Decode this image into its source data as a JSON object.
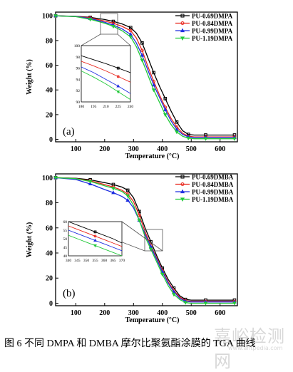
{
  "caption": "图 6  不同 DMPA 和 DMBA 摩尔比聚氨酯涂膜的 TGA 曲线",
  "watermark": {
    "text": "嘉峪检测网",
    "sub": "www.antpedia.com"
  },
  "chart_data": [
    {
      "type": "line",
      "panel_label": "(a)",
      "xlabel": "Temperature (°C)",
      "ylabel": "Weight (%)",
      "xlim": [
        30,
        660
      ],
      "ylim": [
        -2,
        103
      ],
      "xticks": [
        100,
        200,
        300,
        400,
        500,
        600
      ],
      "yticks": [
        0,
        20,
        40,
        60,
        80,
        100
      ],
      "legend_position": "top-right",
      "series": [
        {
          "name": "PU-0.69DMPA",
          "color": "#000000",
          "marker": "square",
          "x": [
            30,
            100,
            150,
            200,
            230,
            260,
            290,
            310,
            330,
            350,
            370,
            390,
            410,
            430,
            450,
            470,
            490,
            510,
            550,
            600,
            650
          ],
          "y": [
            100,
            99.6,
            98.8,
            97,
            95.5,
            93.5,
            90.5,
            86,
            78,
            66,
            54,
            43,
            33,
            23,
            14,
            7,
            4,
            3.5,
            3.5,
            3.5,
            3.5
          ]
        },
        {
          "name": "PU-0.84DMPA",
          "color": "#e8261c",
          "marker": "circle",
          "x": [
            30,
            100,
            150,
            200,
            230,
            260,
            290,
            310,
            330,
            350,
            370,
            390,
            410,
            430,
            450,
            470,
            490,
            510,
            550,
            600,
            650
          ],
          "y": [
            100,
            99.5,
            98.4,
            95.8,
            94,
            91.5,
            88,
            82,
            72,
            59,
            47,
            36,
            26,
            17,
            10,
            5,
            2.5,
            2,
            2,
            2,
            2
          ]
        },
        {
          "name": "PU-0.99DMPA",
          "color": "#1f2fe0",
          "marker": "triangle",
          "x": [
            30,
            100,
            150,
            200,
            230,
            260,
            290,
            310,
            330,
            350,
            370,
            390,
            410,
            430,
            450,
            470,
            490,
            510,
            550,
            600,
            650
          ],
          "y": [
            100,
            99.4,
            97.8,
            94.8,
            92.5,
            89.5,
            85,
            78,
            68,
            56,
            44,
            34,
            24,
            15,
            8,
            4,
            2,
            1.5,
            1.5,
            1.5,
            1.5
          ]
        },
        {
          "name": "PU-1.19DMPA",
          "color": "#22c93a",
          "marker": "triangle-down",
          "x": [
            30,
            100,
            150,
            200,
            230,
            260,
            290,
            310,
            330,
            350,
            370,
            390,
            410,
            430,
            450,
            470,
            490,
            510,
            550,
            600,
            650
          ],
          "y": [
            100,
            99.3,
            97.2,
            94,
            91.5,
            88,
            83,
            75,
            64,
            52,
            40,
            30,
            20,
            12,
            6,
            2.5,
            1,
            0.5,
            0.5,
            0.5,
            0.5
          ]
        }
      ],
      "inset": {
        "xlim": [
          180,
          240
        ],
        "ylim": [
          90,
          100
        ],
        "xticks": [
          180,
          195,
          210,
          225,
          240
        ],
        "yticks": [
          90,
          92,
          94,
          96,
          98,
          100
        ],
        "series": [
          {
            "name": "PU-0.69DMPA",
            "x": [
              180,
              195,
              210,
              225,
              240
            ],
            "y": [
              98.2,
              97.5,
              96.8,
              96.0,
              95.2
            ]
          },
          {
            "name": "PU-0.84DMPA",
            "x": [
              180,
              195,
              210,
              225,
              240
            ],
            "y": [
              97.2,
              96.4,
              95.5,
              94.5,
              93.5
            ]
          },
          {
            "name": "PU-0.99DMPA",
            "x": [
              180,
              195,
              210,
              225,
              240
            ],
            "y": [
              96.2,
              95.2,
              94.0,
              92.8,
              91.5
            ]
          },
          {
            "name": "PU-1.19DMPA",
            "x": [
              180,
              195,
              210,
              225,
              240
            ],
            "y": [
              95.5,
              94.4,
              93.2,
              91.8,
              90.4
            ]
          }
        ]
      }
    },
    {
      "type": "line",
      "panel_label": "(b)",
      "xlabel": "Temperature (°C)",
      "ylabel": "Weight (%)",
      "xlim": [
        30,
        660
      ],
      "ylim": [
        -2,
        103
      ],
      "xticks": [
        100,
        200,
        300,
        400,
        500,
        600
      ],
      "yticks": [
        0,
        20,
        40,
        60,
        80,
        100
      ],
      "legend_position": "top-right",
      "series": [
        {
          "name": "PU-0.69DMBA",
          "color": "#000000",
          "marker": "square",
          "x": [
            30,
            100,
            150,
            200,
            230,
            260,
            280,
            300,
            320,
            340,
            360,
            380,
            400,
            420,
            440,
            460,
            480,
            500,
            550,
            600,
            650
          ],
          "y": [
            100,
            99.5,
            98.3,
            96,
            94.5,
            92.5,
            90,
            84,
            73,
            60,
            49,
            38,
            28,
            19,
            12,
            6,
            3,
            2.5,
            2.5,
            2.5,
            2.5
          ]
        },
        {
          "name": "PU-0.84DMBA",
          "color": "#e8261c",
          "marker": "circle",
          "x": [
            30,
            100,
            150,
            200,
            230,
            260,
            280,
            300,
            320,
            340,
            360,
            380,
            400,
            420,
            440,
            460,
            480,
            500,
            550,
            600,
            650
          ],
          "y": [
            100,
            99.3,
            97.5,
            94.5,
            92.5,
            90,
            87,
            81,
            70,
            57,
            46,
            36,
            26,
            17,
            10,
            5,
            2,
            1.5,
            1.5,
            1.5,
            1.5
          ]
        },
        {
          "name": "PU-0.99DMBA",
          "color": "#1f2fe0",
          "marker": "triangle",
          "x": [
            30,
            100,
            150,
            200,
            230,
            260,
            280,
            300,
            320,
            340,
            360,
            380,
            400,
            420,
            440,
            460,
            480,
            500,
            550,
            600,
            650
          ],
          "y": [
            100,
            98.5,
            95,
            90.5,
            88,
            85,
            82,
            76,
            66,
            55,
            45,
            35,
            25,
            16,
            9,
            4,
            1.5,
            1,
            1,
            1,
            1
          ]
        },
        {
          "name": "PU-1.19DMBA",
          "color": "#22c93a",
          "marker": "triangle-down",
          "x": [
            30,
            100,
            150,
            200,
            230,
            260,
            280,
            300,
            320,
            340,
            360,
            380,
            400,
            420,
            440,
            460,
            480,
            500,
            550,
            600,
            650
          ],
          "y": [
            100,
            99.2,
            97,
            93.5,
            91.5,
            89,
            85.5,
            78,
            66,
            53,
            43,
            33,
            23,
            14,
            7,
            3,
            0.5,
            0,
            0,
            0,
            0
          ]
        }
      ],
      "inset": {
        "xlim": [
          340,
          370
        ],
        "ylim": [
          40,
          60
        ],
        "xticks": [
          340,
          345,
          350,
          355,
          360,
          365,
          370
        ],
        "yticks": [
          40,
          45,
          50,
          55,
          60
        ],
        "series": [
          {
            "name": "PU-0.69DMBA",
            "x": [
              340,
              345,
              350,
              355,
              360,
              365,
              370
            ],
            "y": [
              60,
              58,
              56,
              54,
              52,
              50,
              47.5
            ]
          },
          {
            "name": "PU-0.84DMBA",
            "x": [
              340,
              345,
              350,
              355,
              360,
              365,
              370
            ],
            "y": [
              57.5,
              55.5,
              53.5,
              51.5,
              49.5,
              47.5,
              45.5
            ]
          },
          {
            "name": "PU-0.99DMBA",
            "x": [
              340,
              345,
              350,
              355,
              360,
              365,
              370
            ],
            "y": [
              55,
              53,
              51,
              49,
              47,
              45,
              43
            ]
          },
          {
            "name": "PU-1.19DMBA",
            "x": [
              340,
              345,
              350,
              355,
              360,
              365,
              370
            ],
            "y": [
              52,
              50,
              48,
              46,
              44,
              42,
              40
            ]
          }
        ]
      }
    }
  ]
}
